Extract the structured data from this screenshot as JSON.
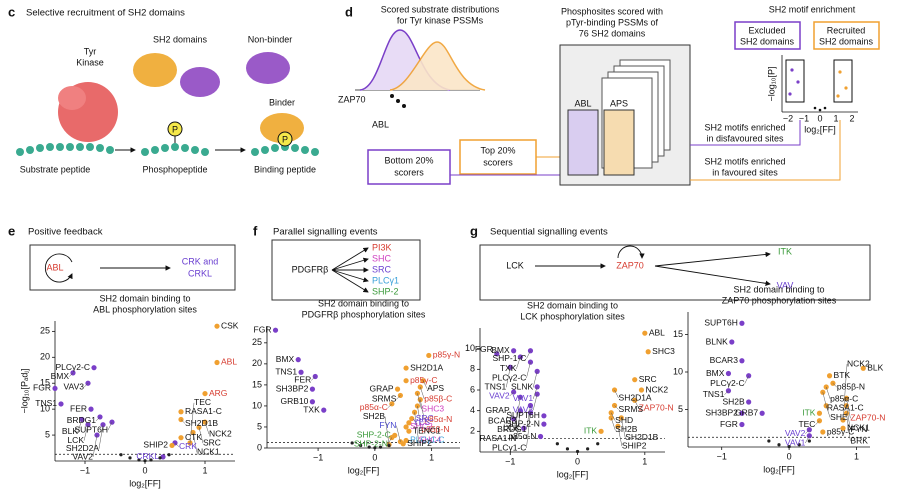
{
  "panels": {
    "c": {
      "letter": "c",
      "title": "Selective recruitment of SH2 domains",
      "kinase": [
        "Tyr",
        "Kinase"
      ],
      "sh2": "SH2 domains",
      "nonbinder": "Non-binder",
      "binder": "Binder",
      "p": "P",
      "substrate": "Substrate peptide",
      "phospho": "Phosphopeptide",
      "binding": "Binding peptide"
    },
    "d": {
      "letter": "d",
      "dist_title": [
        "Scored substrate distributions",
        "for Tyr kinase PSSMs"
      ],
      "zap70": "ZAP70",
      "abl": "ABL",
      "bottom": [
        "Bottom 20%",
        "scorers"
      ],
      "top": [
        "Top 20%",
        "scorers"
      ],
      "scored": [
        "Phosphosites scored with",
        "pTyr-binding PSSMs of",
        "76 SH2 domains"
      ],
      "abl_map": "ABL",
      "aps_map": "APS",
      "disfav": [
        "SH2 motifs enriched",
        "in disfavoured sites"
      ],
      "fav": [
        "SH2 motifs enriched",
        "in favoured sites"
      ],
      "enrich_title": "SH2 motif enrichment",
      "excluded": [
        "Excluded",
        "SH2 domains"
      ],
      "recruited": [
        "Recruited",
        "SH2 domains"
      ],
      "ylabel": "−log₁₀[P]",
      "xlabel": "log₂[FF]",
      "xticks": [
        "−2",
        "−1",
        "0",
        "1",
        "2"
      ]
    },
    "e": {
      "letter": "e",
      "title": "Positive feedback",
      "source": "ABL",
      "target": [
        "CRK and",
        "CRKL"
      ]
    },
    "f": {
      "letter": "f",
      "title": "Parallel signalling events",
      "source": "PDGFRβ",
      "targets": [
        "PI3K",
        "SHC",
        "SRC",
        "PLCγ1",
        "SHP-2"
      ]
    },
    "g": {
      "letter": "g",
      "title": "Sequential signalling events",
      "source": "LCK",
      "middle": "ZAP70",
      "targets": [
        "ITK",
        "VAV"
      ]
    }
  },
  "chart_data": [
    {
      "type": "scatter",
      "title": [
        "SH2 domain binding to",
        "ABL phosphorylation sites"
      ],
      "xlabel": "log₂[FF]",
      "ylabel": "−log₁₀[Pₐdⱼ]",
      "xlim": [
        -1.5,
        1.5
      ],
      "ylim": [
        0,
        27
      ],
      "xticks": [
        {
          "value": -1,
          "label": "−1"
        },
        0,
        1
      ],
      "yticks": [
        5,
        10,
        15,
        20,
        25
      ],
      "threshold": 1.3,
      "series": [
        {
          "color": "#7a3fc8",
          "x": [
            -1.2,
            -0.85,
            -1.5,
            -1.4,
            -0.95,
            -0.9,
            -0.75,
            -1.05,
            -0.95,
            -0.7,
            -0.55,
            -0.8,
            0.5,
            0.3
          ],
          "values": [
            17,
            18,
            14,
            11,
            15,
            10,
            8.5,
            8,
            7,
            7,
            7.5,
            5,
            3.5,
            0.8
          ],
          "labels": [
            "BMX",
            "PLCγ2-C",
            "FGR",
            "TNS1",
            "VAV3",
            "FER",
            "BRDG1",
            "BLK",
            "LCK",
            "SH2D2A",
            "SUPT6H",
            "VAV2",
            "CRK",
            "CRKL"
          ],
          "label_colors": [
            null,
            null,
            null,
            null,
            null,
            null,
            null,
            null,
            null,
            null,
            null,
            null,
            "#6a3fd0",
            "#6a3fd0"
          ]
        },
        {
          "color": "#f0a030",
          "x": [
            1.2,
            1.2,
            1.0,
            0.6,
            0.6,
            1.0,
            0.9,
            0.8,
            0.6,
            0.75,
            0.45
          ],
          "values": [
            26,
            19,
            13,
            9.5,
            8,
            7.5,
            6.5,
            5.5,
            4.5,
            3.5,
            3
          ],
          "labels": [
            "CSK",
            "ABL",
            "ARG",
            "RASA1-C",
            "SH2D1B",
            "NCK2",
            "SRC",
            "NCK1",
            "CTK",
            "TEC",
            "SHIP2"
          ],
          "label_colors": [
            null,
            "#d63b2f",
            "#d63b2f",
            null,
            null,
            null,
            null,
            null,
            null,
            null,
            null
          ]
        },
        {
          "color": "#222222",
          "x": [
            -0.4,
            -0.25,
            -0.1,
            0,
            0.1,
            0.25,
            0.4
          ],
          "values": [
            1.2,
            0.6,
            0.2,
            0.05,
            0.2,
            0.6,
            1.2
          ]
        }
      ]
    },
    {
      "type": "scatter",
      "title": [
        "SH2 domain binding to",
        "PDGFRβ phosphorylation sites"
      ],
      "xlabel": "log₂[FF]",
      "xlim": [
        -1.9,
        1.5
      ],
      "ylim": [
        0,
        29
      ],
      "xticks": [
        {
          "value": -1,
          "label": "−1"
        },
        0,
        1
      ],
      "yticks": [
        0,
        5,
        10,
        15,
        20,
        25
      ],
      "threshold": 1.3,
      "series": [
        {
          "color": "#7a3fc8",
          "x": [
            -1.75,
            -1.35,
            -1.3,
            -1.05,
            -1.1,
            -1.1,
            -0.9
          ],
          "values": [
            28,
            21,
            18,
            17,
            14,
            11,
            9
          ],
          "labels": [
            "FGR",
            "BMX",
            "TNS1",
            "FER",
            "SH3BP2",
            "GRB10",
            "TXK"
          ]
        },
        {
          "color": "#f0a030",
          "x": [
            0.95,
            0.55,
            0.55,
            0.85,
            0.4,
            0.8,
            0.45,
            0.75,
            0.3,
            0.8,
            0.75,
            0.7,
            0.65,
            0.6,
            0.55,
            0.6,
            0.35,
            0.3,
            0.45,
            0.55,
            0.25,
            0.5
          ],
          "values": [
            22,
            19,
            16,
            16,
            14,
            14.5,
            12.5,
            13,
            10.5,
            11.5,
            10,
            8.5,
            7,
            6,
            5,
            4,
            3,
            2.5,
            1.5,
            1.8,
            0.8,
            1.0
          ],
          "labels": [
            "p85γ-N",
            "SH2D1A",
            "p85γ-C",
            "APS",
            "GRAP",
            "p85β-C",
            "SRMS",
            "SHC3",
            "p85α-C",
            "p85α-N",
            "p85β-N",
            "SHC4",
            "SRC",
            "YES",
            "SHC2",
            "TENC1",
            "SHP-2-C",
            "SHP-2-N",
            "FYN",
            "PLCγ1-C",
            "SH2B",
            "SHIP2"
          ],
          "label_colors": [
            "#d63b2f",
            null,
            "#d63b2f",
            null,
            null,
            "#d63b2f",
            null,
            "#d040c0",
            "#d63b2f",
            "#d63b2f",
            "#d63b2f",
            "#d040c0",
            "#6a3fd0",
            "#6a3fd0",
            "#d040c0",
            null,
            "#3a9a3a",
            "#3a9a3a",
            "#4a4ad0",
            "#39a0d8",
            null,
            null
          ]
        },
        {
          "color": "#222222",
          "x": [
            -0.4,
            -0.25,
            -0.1,
            0,
            0.1,
            0.25
          ],
          "values": [
            1.2,
            0.6,
            0.2,
            0.05,
            0.2,
            0.6
          ]
        }
      ]
    },
    {
      "type": "scatter",
      "title": [
        "SH2 domain binding to",
        "LCK phosphorylation sites"
      ],
      "xlabel": "log₂[FF]",
      "xlim": [
        -1.45,
        1.3
      ],
      "ylim": [
        0,
        12
      ],
      "xticks": [
        {
          "value": -1,
          "label": "−1"
        },
        0,
        1
      ],
      "yticks": [
        2,
        4,
        6,
        8,
        10
      ],
      "threshold": 1.3,
      "series": [
        {
          "color": "#7a3fc8",
          "x": [
            -0.95,
            -0.7,
            -0.85,
            -1.2,
            -0.7,
            -1.0,
            -0.6,
            -0.6,
            -0.95,
            -0.6,
            -0.85,
            -0.7,
            -0.85,
            -0.5,
            -0.95,
            -0.5,
            -0.8,
            -0.55,
            -0.7
          ],
          "values": [
            9.8,
            9.8,
            9.2,
            9.5,
            8.7,
            8.2,
            7.8,
            6.3,
            5.8,
            5.6,
            5.3,
            4.5,
            4,
            3.5,
            3.2,
            2.7,
            2.3,
            1.5,
            3.8
          ],
          "labels": [
            "BMX",
            "SHP-1-C",
            "TXK",
            "FGR",
            "PLCγ2-C",
            "TNS1",
            "SLNK",
            "VAV1",
            "VAV2",
            "VAV3",
            "BCAR3",
            "BRDG1",
            "RASA1-N",
            "SUPT6H",
            "GRAP",
            "SHP-2-N",
            "LCK",
            "p85α-N",
            "PLCγ1-C"
          ],
          "label_colors": [
            null,
            null,
            null,
            null,
            null,
            null,
            null,
            "#6a3fd0",
            "#6a3fd0",
            "#6a3fd0",
            null,
            null,
            null,
            null,
            null,
            null,
            null,
            null,
            null
          ]
        },
        {
          "color": "#f0a030",
          "x": [
            1.0,
            1.05,
            0.85,
            0.95,
            0.55,
            0.85,
            0.55,
            0.5,
            0.5,
            0.65,
            0.6,
            0.35
          ],
          "values": [
            11.5,
            9.7,
            7,
            6,
            6,
            5,
            4.5,
            3.8,
            3.3,
            3.3,
            2.5,
            2
          ],
          "labels": [
            "ABL",
            "SHC3",
            "SRC",
            "NCK2",
            "SH2D1A",
            "ZAP70-N",
            "SRMS",
            "SHD",
            "SH2B",
            "SH2D1B",
            "SHIP2",
            "ITK"
          ],
          "label_colors": [
            null,
            null,
            null,
            null,
            null,
            "#d63b2f",
            null,
            null,
            null,
            null,
            null,
            "#3a9a3a"
          ]
        },
        {
          "color": "#222222",
          "x": [
            -0.3,
            -0.15,
            0,
            0.15,
            0.3
          ],
          "values": [
            0.8,
            0.3,
            0.05,
            0.3,
            0.8
          ]
        }
      ]
    },
    {
      "type": "scatter",
      "title": [
        "SH2 domain binding to",
        "ZAP70 phosphorylation sites"
      ],
      "xlabel": "log₂[FF]",
      "xlim": [
        -1.5,
        1.2
      ],
      "ylim": [
        0,
        18
      ],
      "xticks": [
        {
          "value": -1,
          "label": "−1"
        },
        0,
        1
      ],
      "yticks": [
        5,
        10,
        15
      ],
      "threshold": 1.3,
      "series": [
        {
          "color": "#7a3fc8",
          "x": [
            -0.7,
            -0.85,
            -0.7,
            -0.9,
            -0.6,
            -0.9,
            -0.6,
            -0.7,
            -0.4,
            -0.7,
            0.3,
            0.3
          ],
          "values": [
            16.5,
            14,
            11.5,
            9.8,
            9.5,
            7.5,
            6,
            4.5,
            4.5,
            3,
            1.5,
            2.3
          ],
          "labels": [
            "SUPT6H",
            "BLNK",
            "BCAR3",
            "BMX",
            "PLCγ2-C",
            "TNS1",
            "SH2B",
            "SH3BP2",
            "GRB7",
            "FGR",
            "VAV1",
            "VAV2"
          ],
          "label_colors": [
            null,
            null,
            null,
            null,
            null,
            null,
            null,
            null,
            null,
            null,
            "#6a3fd0",
            "#6a3fd0"
          ]
        },
        {
          "color": "#f0a030",
          "x": [
            1.1,
            0.6,
            0.65,
            0.55,
            0.5,
            0.85,
            0.55,
            0.85,
            0.45,
            0.85,
            0.45,
            0.8,
            0.5,
            0.8
          ],
          "values": [
            10.5,
            9.5,
            8.5,
            8,
            7.3,
            6.5,
            5.5,
            5.5,
            4.5,
            4.5,
            3.5,
            3.6,
            2,
            2.5
          ],
          "labels": [
            "BLK",
            "BTK",
            "p85β-N",
            "p85α-C",
            "RASA1-C",
            "ZAP70-N",
            "SHE",
            "FYN",
            "ITK",
            "BRK",
            "TEC",
            "NCK2",
            "p85γ-C",
            "NCK1"
          ],
          "label_colors": [
            null,
            null,
            null,
            null,
            null,
            "#d63b2f",
            null,
            null,
            "#3a9a3a",
            null,
            null,
            null,
            null,
            null
          ]
        },
        {
          "color": "#222222",
          "x": [
            -0.3,
            -0.15,
            0,
            0.15,
            0.3
          ],
          "values": [
            0.8,
            0.3,
            0.05,
            0.3,
            0.8
          ]
        }
      ]
    }
  ]
}
